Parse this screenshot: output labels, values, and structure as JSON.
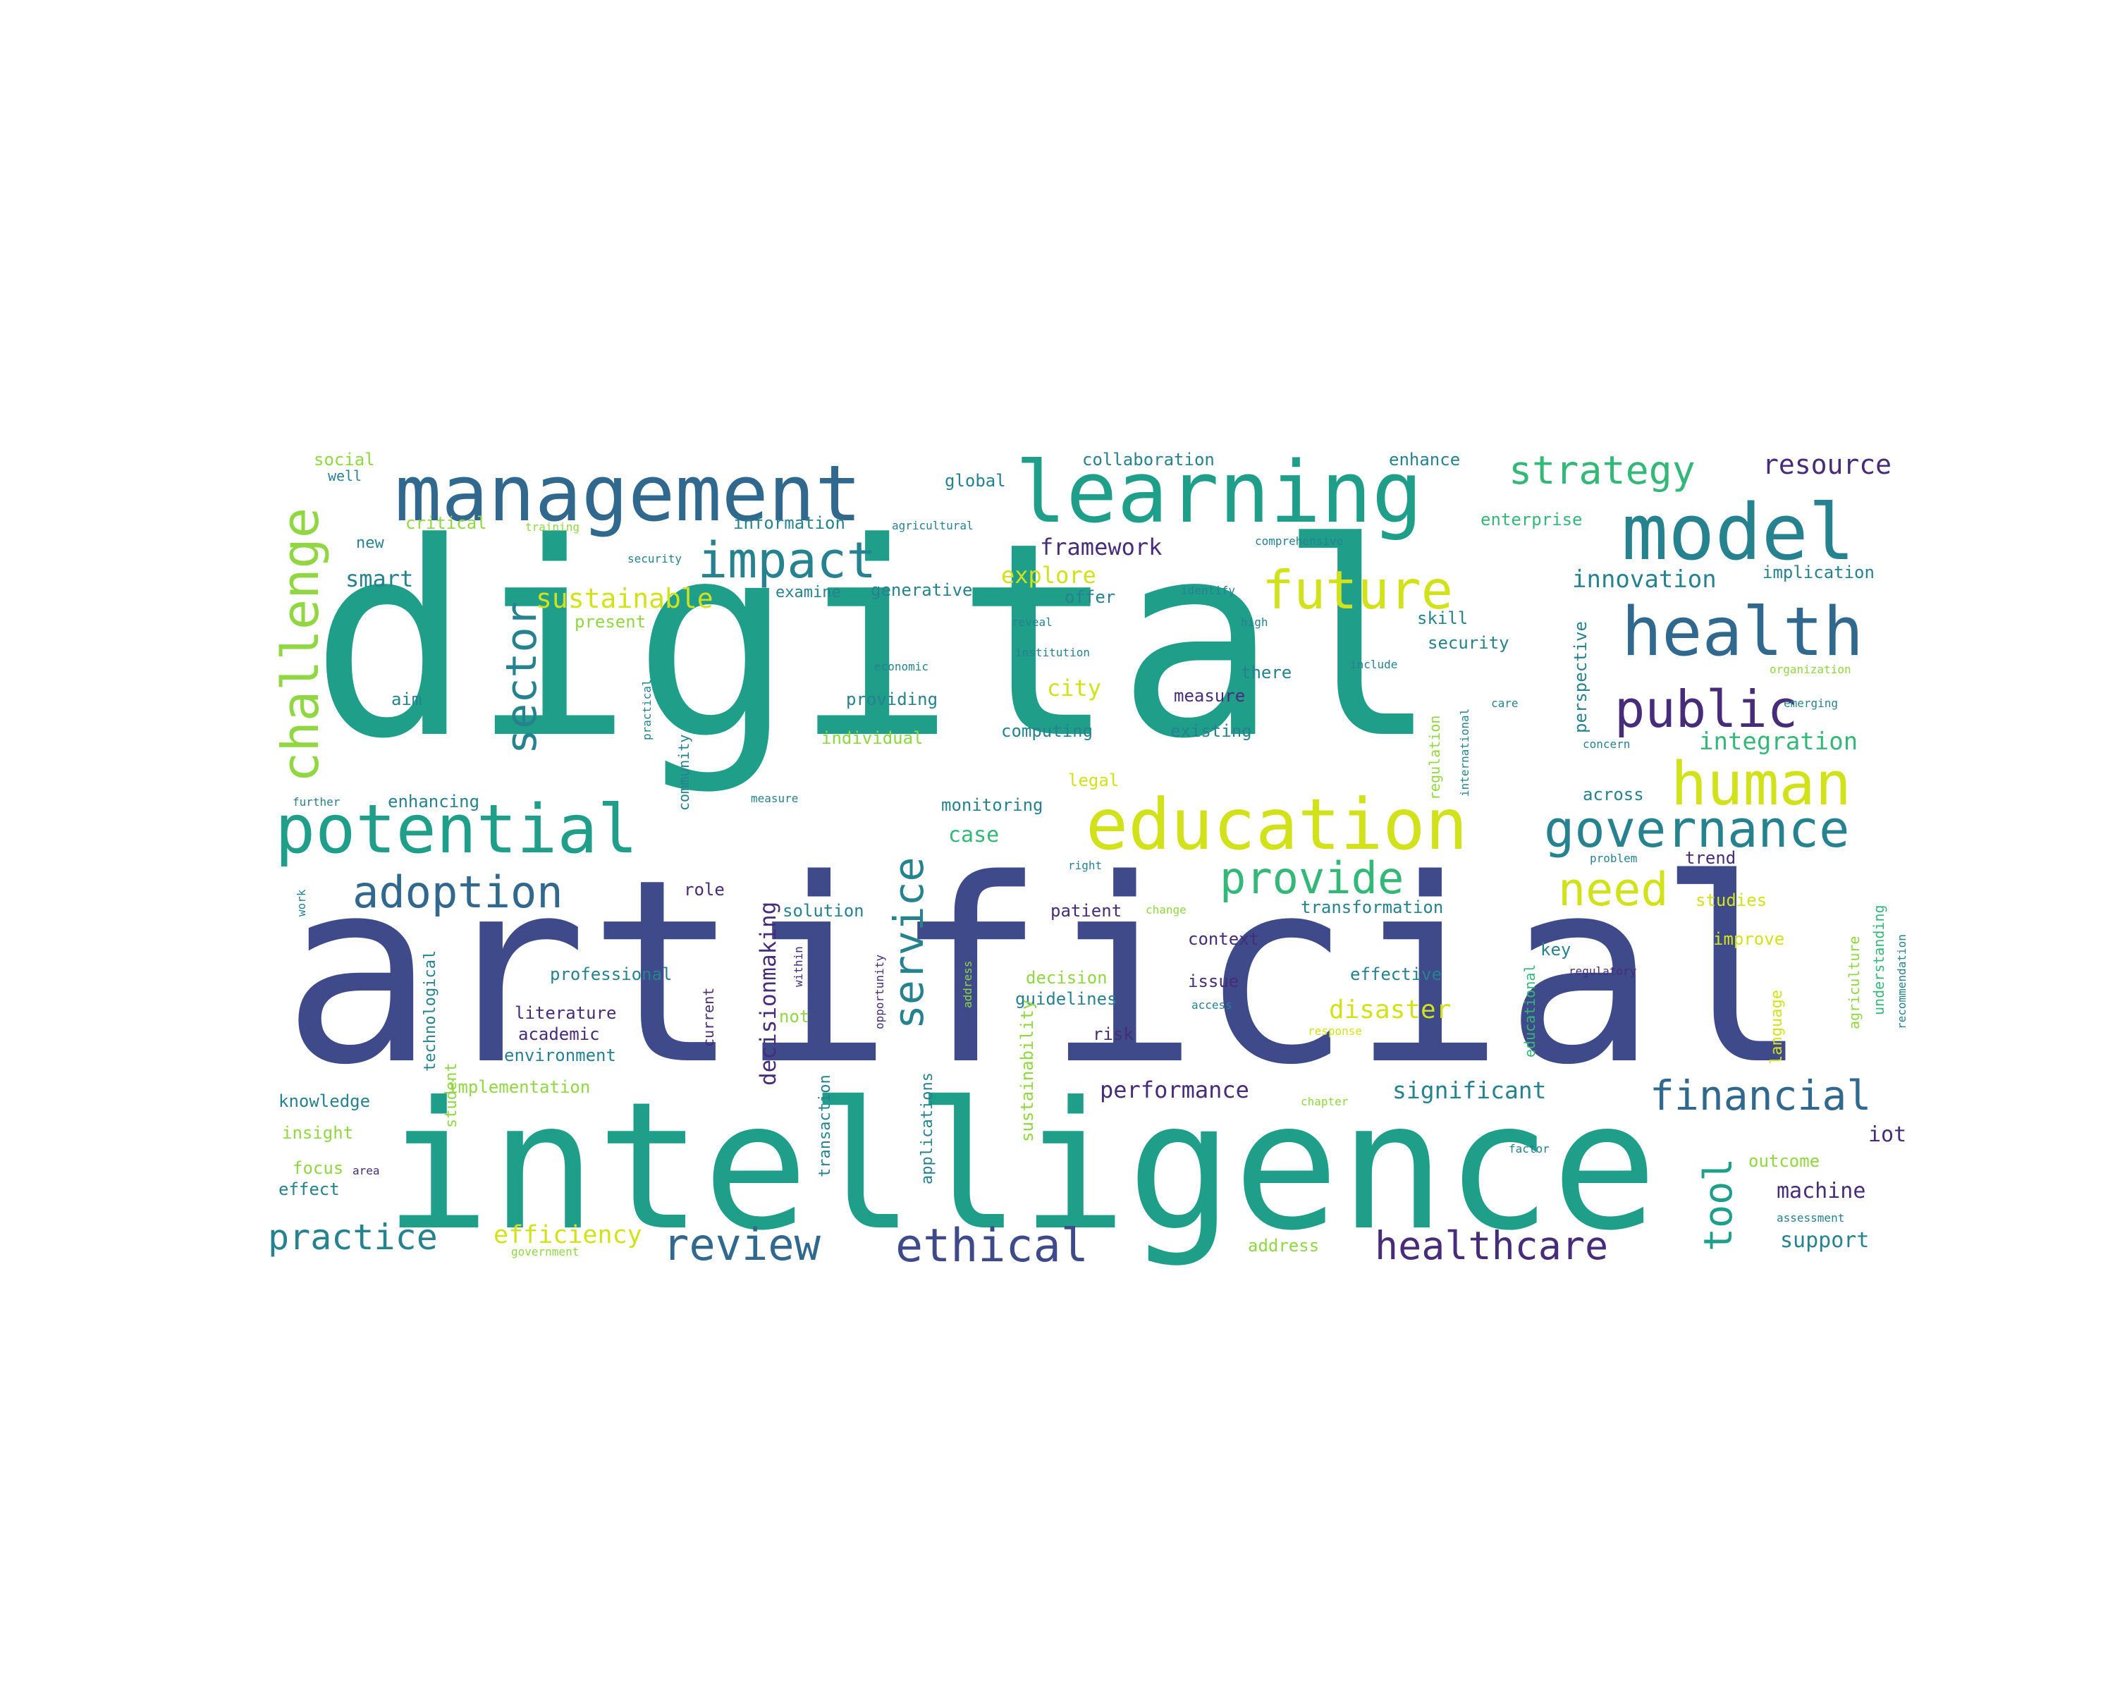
{
  "palette": {
    "dark_purple": "#472c7a",
    "indigo": "#3e4a89",
    "blue": "#31688e",
    "teal": "#26828e",
    "green": "#1f9e89",
    "seafoam": "#35b779",
    "lime": "#90d743",
    "yellow": "#d1e21b"
  },
  "words": [
    {
      "text": "digital",
      "color": "green",
      "icon": ""
    },
    {
      "text": "artificial",
      "color": "indigo"
    },
    {
      "text": "intelligence",
      "color": "green"
    },
    {
      "text": "management",
      "color": "blue"
    },
    {
      "text": "learning",
      "color": "green"
    },
    {
      "text": "model",
      "color": "teal"
    },
    {
      "text": "education",
      "color": "yellow"
    },
    {
      "text": "potential",
      "color": "green"
    },
    {
      "text": "health",
      "color": "blue"
    },
    {
      "text": "impact",
      "color": "teal"
    },
    {
      "text": "future",
      "color": "yellow"
    },
    {
      "text": "challenge",
      "color": "lime"
    },
    {
      "text": "sector",
      "color": "teal"
    },
    {
      "text": "human",
      "color": "yellow"
    },
    {
      "text": "governance",
      "color": "teal"
    },
    {
      "text": "public",
      "color": "dark_purple"
    },
    {
      "text": "strategy",
      "color": "seafoam"
    },
    {
      "text": "adoption",
      "color": "blue"
    },
    {
      "text": "provide",
      "color": "seafoam"
    },
    {
      "text": "need",
      "color": "yellow"
    },
    {
      "text": "service",
      "color": "teal"
    },
    {
      "text": "review",
      "color": "blue"
    },
    {
      "text": "ethical",
      "color": "indigo"
    },
    {
      "text": "financial",
      "color": "blue"
    },
    {
      "text": "healthcare",
      "color": "dark_purple"
    },
    {
      "text": "tool",
      "color": "green"
    },
    {
      "text": "practice",
      "color": "teal"
    },
    {
      "text": "resource",
      "color": "dark_purple"
    },
    {
      "text": "sustainable",
      "color": "yellow"
    },
    {
      "text": "innovation",
      "color": "teal"
    },
    {
      "text": "integration",
      "color": "seafoam"
    },
    {
      "text": "disaster",
      "color": "yellow"
    },
    {
      "text": "efficiency",
      "color": "yellow"
    },
    {
      "text": "decisionmaking",
      "color": "dark_purple"
    },
    {
      "text": "performance",
      "color": "dark_purple"
    },
    {
      "text": "significant",
      "color": "teal"
    },
    {
      "text": "framework",
      "color": "dark_purple"
    },
    {
      "text": "explore",
      "color": "yellow"
    },
    {
      "text": "smart",
      "color": "teal"
    },
    {
      "text": "city",
      "color": "yellow"
    },
    {
      "text": "case",
      "color": "seafoam"
    },
    {
      "text": "machine",
      "color": "dark_purple"
    },
    {
      "text": "support",
      "color": "teal"
    },
    {
      "text": "iot",
      "color": "dark_purple"
    },
    {
      "text": "social",
      "color": "lime"
    },
    {
      "text": "well",
      "color": "teal"
    },
    {
      "text": "critical",
      "color": "lime"
    },
    {
      "text": "training",
      "color": "lime"
    },
    {
      "text": "information",
      "color": "teal"
    },
    {
      "text": "agricultural",
      "color": "teal"
    },
    {
      "text": "global",
      "color": "teal"
    },
    {
      "text": "collaboration",
      "color": "teal"
    },
    {
      "text": "enhance",
      "color": "teal"
    },
    {
      "text": "enterprise",
      "color": "seafoam"
    },
    {
      "text": "new",
      "color": "teal"
    },
    {
      "text": "security",
      "color": "teal"
    },
    {
      "text": "examine",
      "color": "teal"
    },
    {
      "text": "generative",
      "color": "teal"
    },
    {
      "text": "offer",
      "color": "teal"
    },
    {
      "text": "identify",
      "color": "teal"
    },
    {
      "text": "comprehensive",
      "color": "teal"
    },
    {
      "text": "implication",
      "color": "teal"
    },
    {
      "text": "present",
      "color": "lime"
    },
    {
      "text": "reveal",
      "color": "teal"
    },
    {
      "text": "high",
      "color": "teal"
    },
    {
      "text": "skill",
      "color": "teal"
    },
    {
      "text": "security",
      "color": "teal"
    },
    {
      "text": "economic",
      "color": "teal"
    },
    {
      "text": "institution",
      "color": "teal"
    },
    {
      "text": "include",
      "color": "teal"
    },
    {
      "text": "there",
      "color": "teal"
    },
    {
      "text": "organization",
      "color": "lime"
    },
    {
      "text": "aim",
      "color": "teal"
    },
    {
      "text": "practical",
      "color": "teal"
    },
    {
      "text": "providing",
      "color": "teal"
    },
    {
      "text": "measure",
      "color": "dark_purple"
    },
    {
      "text": "care",
      "color": "teal"
    },
    {
      "text": "emerging",
      "color": "teal"
    },
    {
      "text": "individual",
      "color": "lime"
    },
    {
      "text": "computing",
      "color": "teal"
    },
    {
      "text": "existing",
      "color": "teal"
    },
    {
      "text": "concern",
      "color": "teal"
    },
    {
      "text": "legal",
      "color": "yellow"
    },
    {
      "text": "community",
      "color": "teal"
    },
    {
      "text": "regulation",
      "color": "lime"
    },
    {
      "text": "international",
      "color": "teal"
    },
    {
      "text": "perspective",
      "color": "teal"
    },
    {
      "text": "further",
      "color": "teal"
    },
    {
      "text": "enhancing",
      "color": "teal"
    },
    {
      "text": "measure",
      "color": "teal"
    },
    {
      "text": "monitoring",
      "color": "teal"
    },
    {
      "text": "across",
      "color": "teal"
    },
    {
      "text": "right",
      "color": "teal"
    },
    {
      "text": "problem",
      "color": "teal"
    },
    {
      "text": "trend",
      "color": "dark_purple"
    },
    {
      "text": "work",
      "color": "teal"
    },
    {
      "text": "role",
      "color": "dark_purple"
    },
    {
      "text": "solution",
      "color": "teal"
    },
    {
      "text": "patient",
      "color": "dark_purple"
    },
    {
      "text": "change",
      "color": "lime"
    },
    {
      "text": "transformation",
      "color": "teal"
    },
    {
      "text": "studies",
      "color": "yellow"
    },
    {
      "text": "technological",
      "color": "teal"
    },
    {
      "text": "student",
      "color": "lime"
    },
    {
      "text": "professional",
      "color": "teal"
    },
    {
      "text": "context",
      "color": "dark_purple"
    },
    {
      "text": "key",
      "color": "teal"
    },
    {
      "text": "improve",
      "color": "yellow"
    },
    {
      "text": "decision",
      "color": "lime"
    },
    {
      "text": "issue",
      "color": "dark_purple"
    },
    {
      "text": "effective",
      "color": "teal"
    },
    {
      "text": "regulatory",
      "color": "dark_purple"
    },
    {
      "text": "literature",
      "color": "dark_purple"
    },
    {
      "text": "academic",
      "color": "dark_purple"
    },
    {
      "text": "environment",
      "color": "teal"
    },
    {
      "text": "current",
      "color": "dark_purple"
    },
    {
      "text": "not",
      "color": "lime"
    },
    {
      "text": "guidelines",
      "color": "teal"
    },
    {
      "text": "risk",
      "color": "dark_purple"
    },
    {
      "text": "access",
      "color": "teal"
    },
    {
      "text": "response",
      "color": "yellow"
    },
    {
      "text": "educational",
      "color": "seafoam"
    },
    {
      "text": "language",
      "color": "yellow"
    },
    {
      "text": "agriculture",
      "color": "lime"
    },
    {
      "text": "understanding",
      "color": "seafoam"
    },
    {
      "text": "recommendation",
      "color": "teal"
    },
    {
      "text": "within",
      "color": "dark_purple"
    },
    {
      "text": "opportunity",
      "color": "dark_purple"
    },
    {
      "text": "address",
      "color": "lime"
    },
    {
      "text": "sustainability",
      "color": "lime"
    },
    {
      "text": "knowledge",
      "color": "teal"
    },
    {
      "text": "implementation",
      "color": "lime"
    },
    {
      "text": "insight",
      "color": "lime"
    },
    {
      "text": "focus",
      "color": "lime"
    },
    {
      "text": "area",
      "color": "dark_purple"
    },
    {
      "text": "effect",
      "color": "teal"
    },
    {
      "text": "government",
      "color": "lime"
    },
    {
      "text": "transaction",
      "color": "teal"
    },
    {
      "text": "applications",
      "color": "teal"
    },
    {
      "text": "chapter",
      "color": "lime"
    },
    {
      "text": "factor",
      "color": "teal"
    },
    {
      "text": "outcome",
      "color": "lime"
    },
    {
      "text": "assessment",
      "color": "teal"
    },
    {
      "text": "address",
      "color": "lime"
    }
  ]
}
